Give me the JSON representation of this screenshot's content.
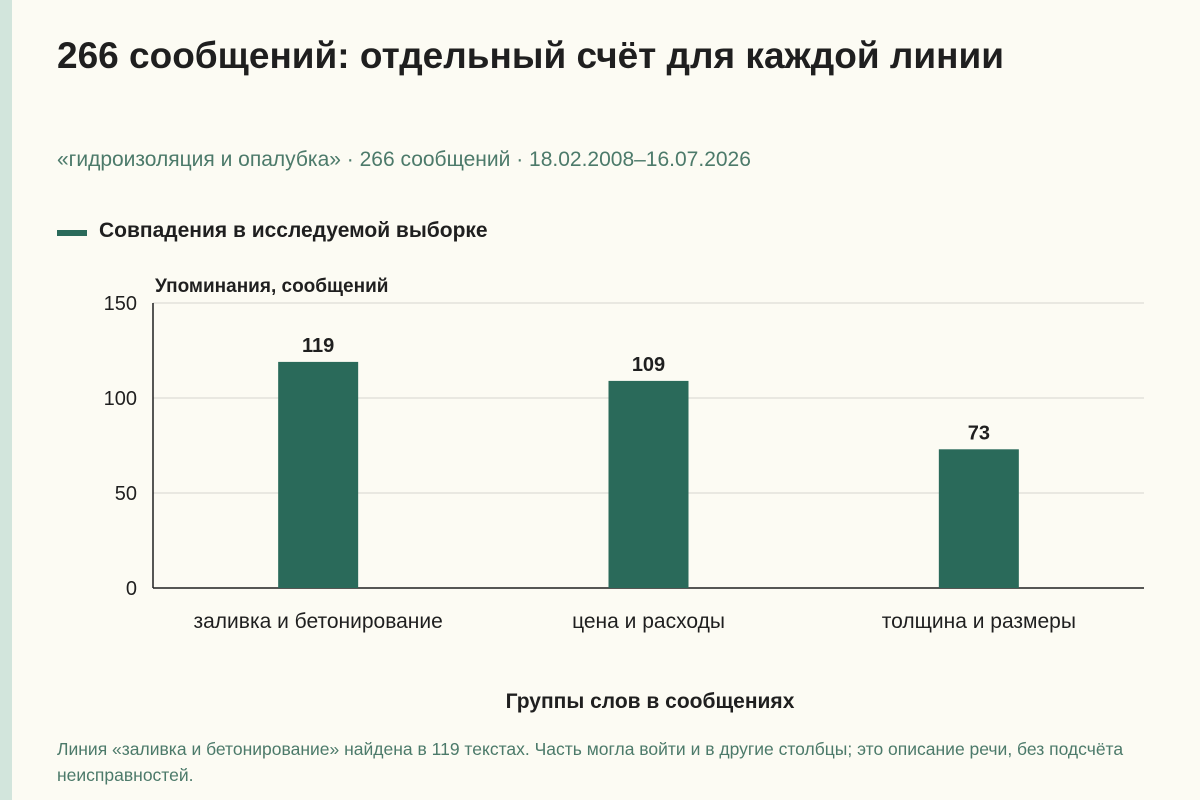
{
  "title": "266 сообщений: отдельный счёт для каждой линии",
  "subtitle": "«гидроизоляция и опалубка» · 266 сообщений · 18.02.2008–16.07.2026",
  "legend": {
    "label": "Совпадения в исследуемой выборке",
    "color": "#2a6a5a"
  },
  "caption": "Линия «заливка и бетонирование» найдена в 119 текстах. Часть могла войти и в другие столбцы; это описание речи, без подсчёта неисправностей.",
  "chart_data": {
    "type": "bar",
    "categories": [
      "заливка и бетонирование",
      "цена и расходы",
      "толщина и размеры"
    ],
    "series": [
      {
        "name": "Совпадения в исследуемой выборке",
        "values": [
          119,
          109,
          73
        ],
        "color": "#2a6a5a"
      }
    ],
    "ylabel": "Упоминания, сообщений",
    "xlabel": "Группы слов в сообщениях",
    "ylim": [
      0,
      150
    ],
    "yticks": [
      0,
      50,
      100,
      150
    ],
    "grid": true,
    "legend_position": "top-left",
    "data_labels": true
  }
}
